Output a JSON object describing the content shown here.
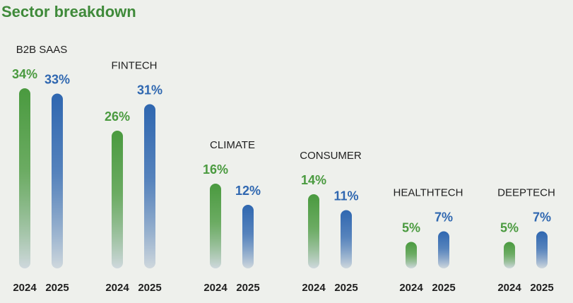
{
  "chart_data": {
    "type": "bar",
    "title": "Sector breakdown",
    "categories": [
      "B2B SAAS",
      "FINTECH",
      "CLIMATE",
      "CONSUMER",
      "HEALTHTECH",
      "DEEPTECH"
    ],
    "series": [
      {
        "name": "2024",
        "values": [
          34,
          26,
          16,
          14,
          5,
          5
        ],
        "labels": [
          "34%",
          "26%",
          "16%",
          "14%",
          "5%",
          "5%"
        ],
        "color": "#4a9a3f"
      },
      {
        "name": "2025",
        "values": [
          33,
          31,
          12,
          11,
          7,
          7
        ],
        "labels": [
          "33%",
          "31%",
          "12%",
          "11%",
          "7%",
          "7%"
        ],
        "color": "#2f67b0"
      }
    ],
    "fade_color": "#cfd8dd",
    "xlabel": "",
    "ylabel": "",
    "ylim": [
      0,
      34
    ],
    "unit": "%",
    "grid": false,
    "legend": "none"
  }
}
